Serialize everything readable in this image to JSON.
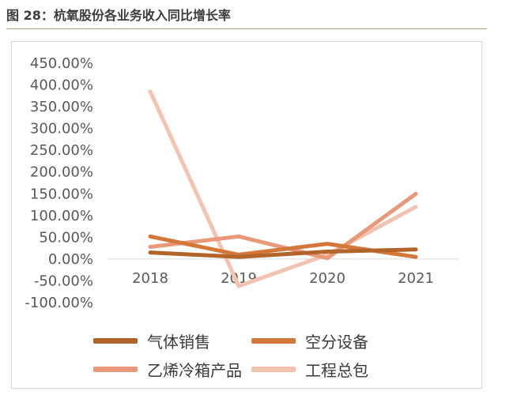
{
  "header": {
    "title": "图 28：杭氧股份各业务收入同比增长率"
  },
  "chart_data": {
    "type": "line",
    "x": [
      "2018",
      "2019",
      "2020",
      "2021"
    ],
    "ylim": [
      -100,
      450
    ],
    "yticks": [
      450,
      400,
      350,
      300,
      250,
      200,
      150,
      100,
      50,
      0,
      -50,
      -100
    ],
    "ytick_labels": [
      "450.00%",
      "400.00%",
      "350.00%",
      "300.00%",
      "250.00%",
      "200.00%",
      "150.00%",
      "100.00%",
      "50.00%",
      "0.00%",
      "-50.00%",
      "-100.00%"
    ],
    "series": [
      {
        "name": "气体销售",
        "values": [
          15,
          5,
          17,
          22
        ],
        "color": "#b3642a"
      },
      {
        "name": "空分设备",
        "values": [
          52,
          10,
          35,
          5
        ],
        "color": "#d4783a"
      },
      {
        "name": "乙烯冷箱产品",
        "values": [
          28,
          52,
          2,
          150
        ],
        "color": "#e9997a"
      },
      {
        "name": "工程总包",
        "values": [
          385,
          -62,
          10,
          120
        ],
        "color": "#f2c3b0"
      }
    ],
    "legend_position": "bottom"
  }
}
